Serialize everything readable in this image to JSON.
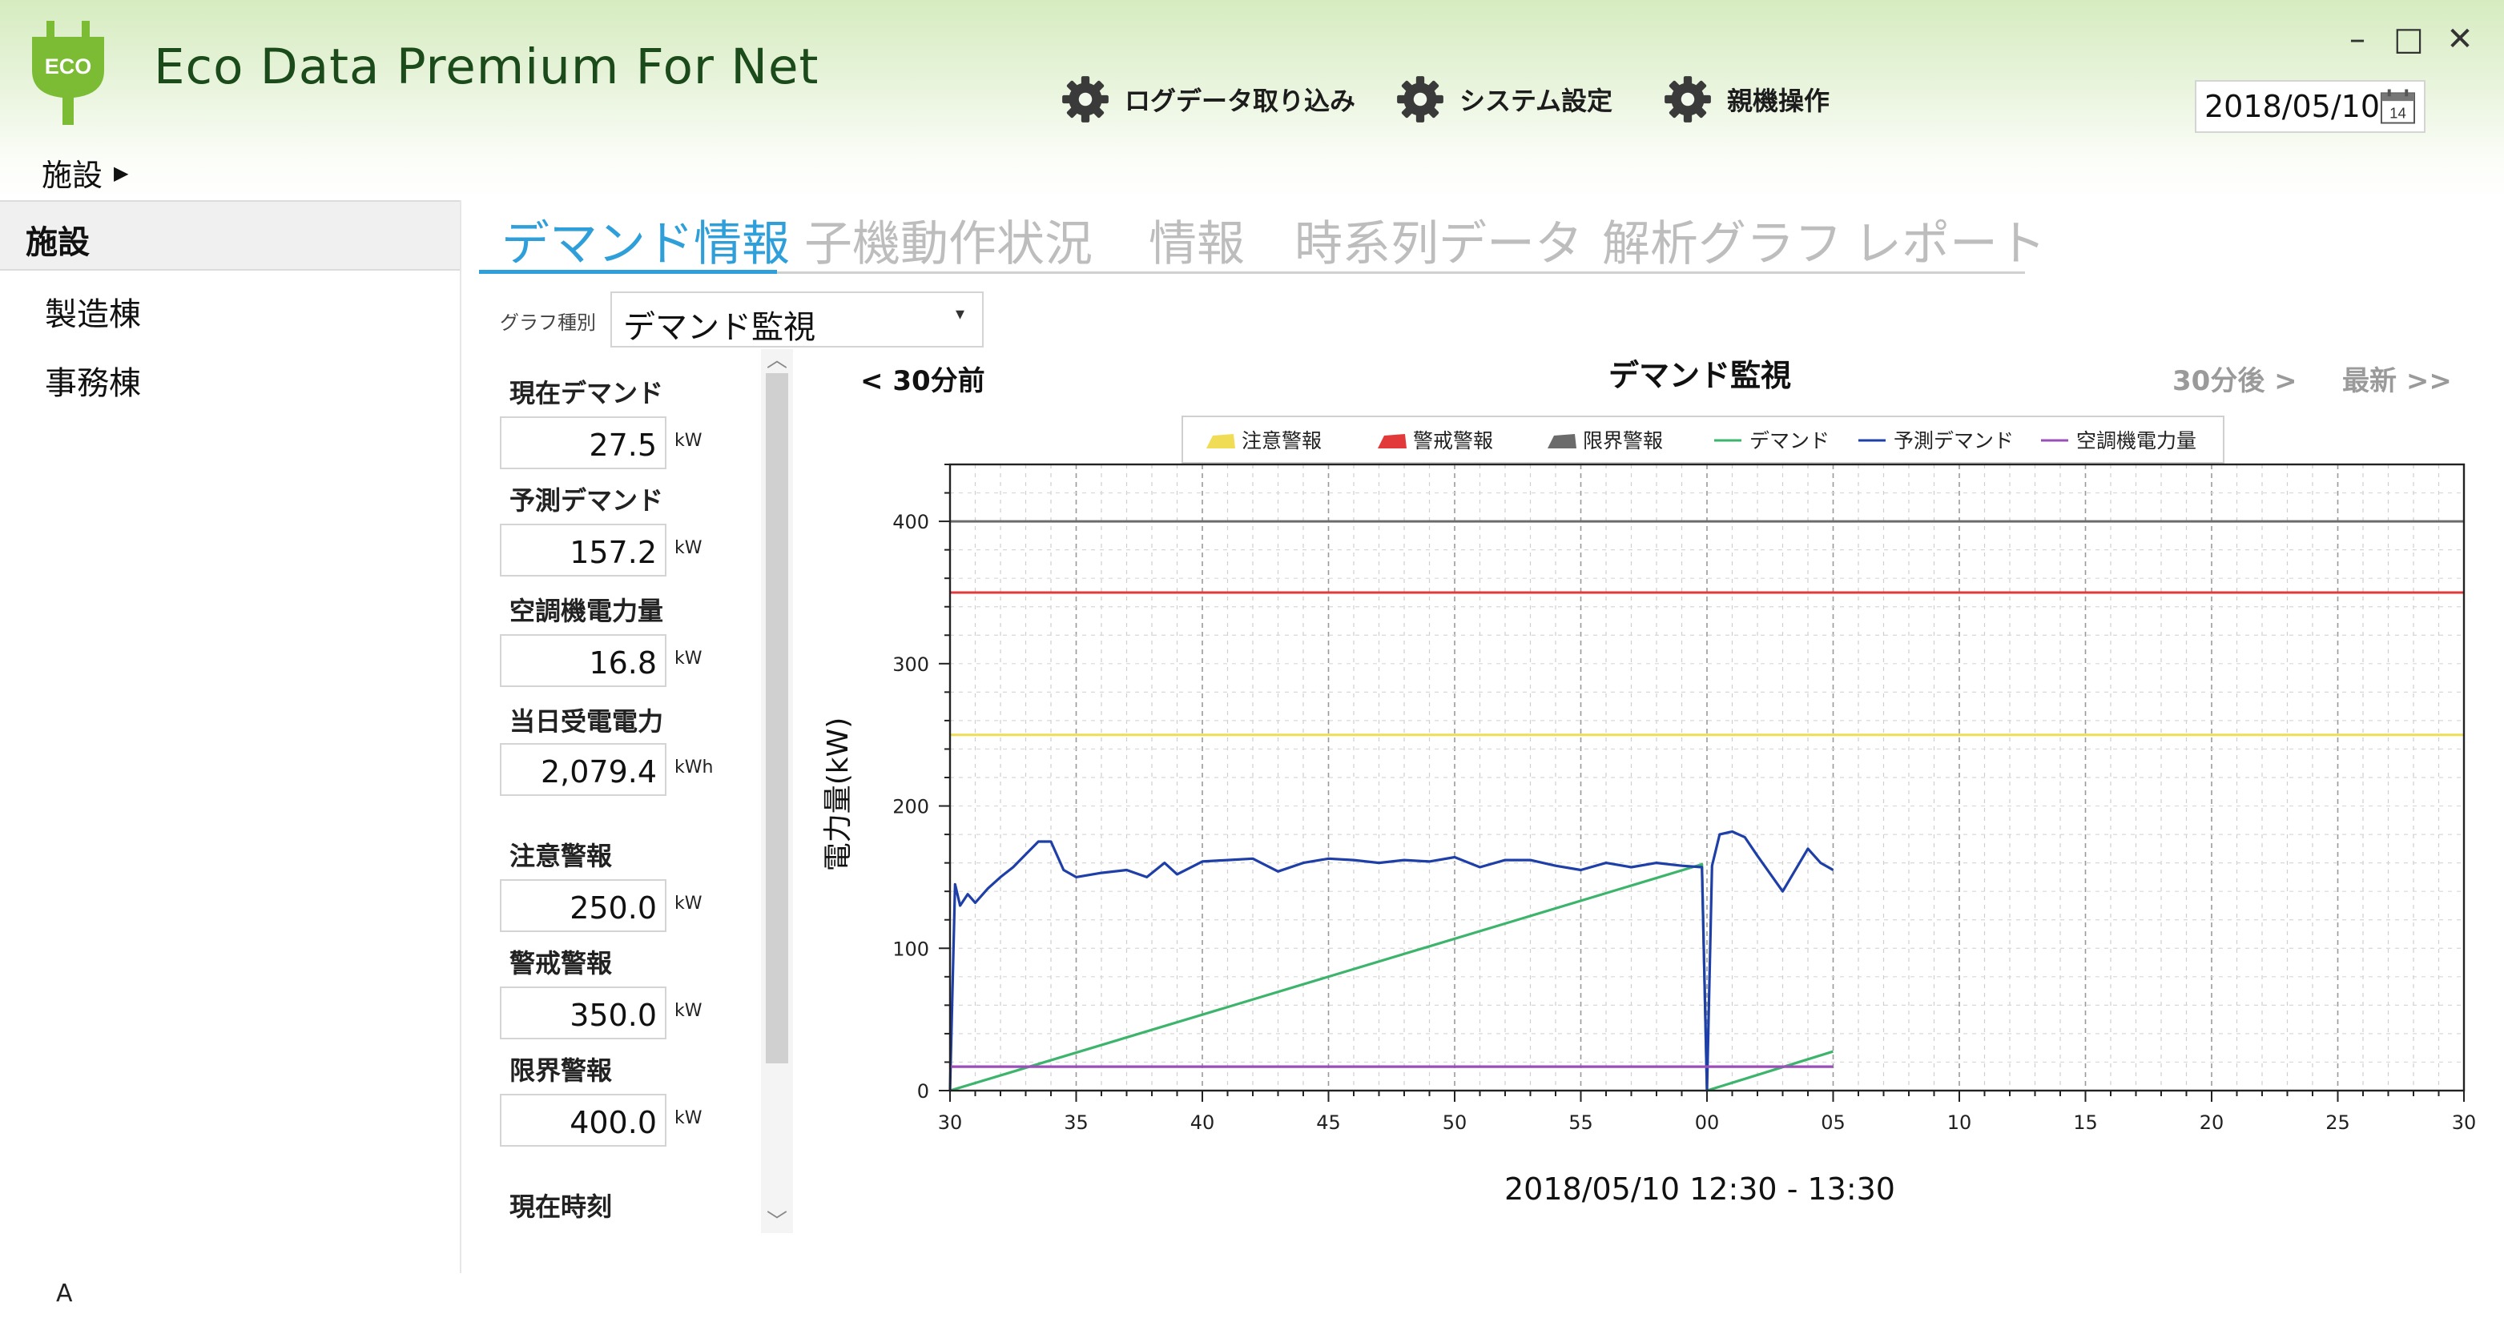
{
  "app": {
    "title": "Eco Data Premium For Net",
    "logo_text": "ECO"
  },
  "toolbar": {
    "import_label": "ログデータ取り込み",
    "settings_label": "システム設定",
    "parent_label": "親機操作"
  },
  "window": {
    "minimize": "–",
    "maximize": "□",
    "close": "✕"
  },
  "date": {
    "value": "2018/05/10",
    "calendar_day": "14"
  },
  "breadcrumb": {
    "label": "施設",
    "arrow": "▶"
  },
  "sidebar": {
    "header": "施設",
    "items": [
      {
        "label": "製造棟"
      },
      {
        "label": "事務棟"
      }
    ]
  },
  "tabs": [
    {
      "label": "デマンド情報"
    },
    {
      "label": "子機動作状況"
    },
    {
      "label": "情報"
    },
    {
      "label": "時系列データ"
    },
    {
      "label": "解析グラフ"
    },
    {
      "label": "レポート"
    }
  ],
  "graph_type": {
    "label": "グラフ種別",
    "value": "デマンド監視",
    "caret": "▾"
  },
  "fields": {
    "current_demand": {
      "label": "現在デマンド",
      "value": "27.5",
      "unit": "kW"
    },
    "predicted_demand": {
      "label": "予測デマンド",
      "value": "157.2",
      "unit": "kW"
    },
    "ac_power": {
      "label": "空調機電力量",
      "value": "16.8",
      "unit": "kW"
    },
    "daily_received": {
      "label": "当日受電電力",
      "value": "2,079.4",
      "unit": "kWh"
    },
    "caution_alarm": {
      "label": "注意警報",
      "value": "250.0",
      "unit": "kW"
    },
    "warning_alarm": {
      "label": "警戒警報",
      "value": "350.0",
      "unit": "kW"
    },
    "limit_alarm": {
      "label": "限界警報",
      "value": "400.0",
      "unit": "kW"
    },
    "current_time": {
      "label": "現在時刻"
    }
  },
  "scroll": {
    "up": "︿",
    "down": "﹀"
  },
  "chart_nav": {
    "prev": "< 30分前",
    "next": "30分後 >",
    "latest": "最新 >>"
  },
  "colors": {
    "accent": "#2e9fd9",
    "caution": "#f0dd55",
    "warning": "#e23a3a",
    "limit": "#6b6b6b",
    "demand": "#3cb46b",
    "predicted": "#1f3fa8",
    "ac": "#9a4fb8"
  },
  "status_bar": {
    "text": "A"
  },
  "chart_data": {
    "type": "line",
    "title": "デマンド監視",
    "xlabel": "2018/05/10 12:30 - 13:30",
    "ylabel": "電力量(kW)",
    "ylim": [
      0,
      440
    ],
    "yticks": [
      0,
      100,
      200,
      300,
      400
    ],
    "xlim": [
      0,
      60
    ],
    "xticks": [
      0,
      5,
      10,
      15,
      20,
      25,
      30,
      35,
      40,
      45,
      50,
      55,
      60
    ],
    "xtick_labels": [
      "30",
      "35",
      "40",
      "45",
      "50",
      "55",
      "00",
      "05",
      "10",
      "15",
      "20",
      "25",
      "30"
    ],
    "legend": [
      {
        "name": "注意警報",
        "color": "#f0dd55",
        "kind": "area"
      },
      {
        "name": "警戒警報",
        "color": "#e23a3a",
        "kind": "area"
      },
      {
        "name": "限界警報",
        "color": "#6b6b6b",
        "kind": "area"
      },
      {
        "name": "デマンド",
        "color": "#3cb46b",
        "kind": "line"
      },
      {
        "name": "予測デマンド",
        "color": "#1f3fa8",
        "kind": "line"
      },
      {
        "name": "空調機電力量",
        "color": "#9a4fb8",
        "kind": "line"
      }
    ],
    "series": [
      {
        "name": "注意警報",
        "color": "#f0dd55",
        "x": [
          0,
          60
        ],
        "y": [
          250,
          250
        ]
      },
      {
        "name": "警戒警報",
        "color": "#e23a3a",
        "x": [
          0,
          60
        ],
        "y": [
          350,
          350
        ]
      },
      {
        "name": "限界警報",
        "color": "#6b6b6b",
        "x": [
          0,
          60
        ],
        "y": [
          400,
          400
        ]
      },
      {
        "name": "デマンド",
        "color": "#3cb46b",
        "x": [
          0,
          29.8,
          30.0,
          35
        ],
        "y": [
          0,
          159,
          0,
          27.5
        ]
      },
      {
        "name": "予測デマンド",
        "color": "#1f3fa8",
        "x": [
          0,
          0.2,
          0.4,
          0.7,
          1.0,
          1.5,
          2.0,
          2.5,
          3.0,
          3.5,
          4.0,
          4.5,
          5.0,
          6.0,
          7.0,
          7.8,
          8.5,
          9.0,
          10,
          11,
          12,
          13,
          14,
          15,
          16,
          17,
          18,
          19,
          20,
          21,
          22,
          23,
          24,
          25,
          26,
          27,
          28,
          29,
          29.8,
          30.0,
          30.2,
          30.5,
          31.0,
          31.5,
          32.0,
          33.0,
          34.0,
          34.5,
          35.0
        ],
        "y": [
          0,
          145,
          130,
          138,
          132,
          142,
          150,
          157,
          166,
          175,
          175,
          155,
          150,
          153,
          155,
          150,
          160,
          152,
          161,
          162,
          163,
          154,
          160,
          163,
          162,
          160,
          162,
          161,
          164,
          157,
          162,
          162,
          158,
          155,
          160,
          157,
          160,
          158,
          157,
          0,
          158,
          180,
          182,
          178,
          165,
          140,
          170,
          160,
          155
        ]
      },
      {
        "name": "空調機電力量",
        "color": "#9a4fb8",
        "x": [
          0,
          35
        ],
        "y": [
          16.8,
          16.8
        ]
      }
    ]
  }
}
